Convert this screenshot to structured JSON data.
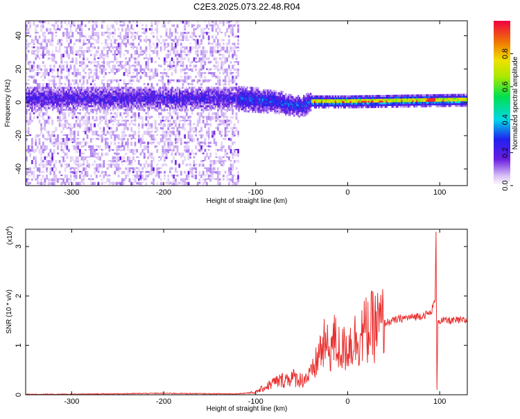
{
  "title": "C2E3.2025.073.22.48.R04",
  "colors": {
    "snr_line": "#e8302e",
    "spectrogram_low": "#c9a8f0",
    "spectrogram_band": "#3a1ad8",
    "spectrogram_peak": "#e0203a"
  },
  "chart_data": [
    {
      "type": "heatmap",
      "xlabel": "Height of straight line (km)",
      "ylabel": "Frequency (Hz)",
      "xlim": [
        -350,
        130
      ],
      "ylim": [
        -50,
        49
      ],
      "xticks": [
        -300,
        -200,
        -100,
        0,
        100
      ],
      "yticks": [
        -40,
        -20,
        0,
        20,
        40
      ],
      "colorbar": {
        "label": "Normalized spectral amplitude",
        "range": [
          0,
          1
        ],
        "ticks": [
          "0.0",
          "0.2",
          "0.4",
          "0.6",
          "0.8"
        ],
        "tick_values": [
          0.0,
          0.2,
          0.4,
          0.6,
          0.8
        ]
      },
      "band": {
        "center_hz": [
          [
            -350,
            2
          ],
          [
            -120,
            2
          ],
          [
            -80,
            0
          ],
          [
            -50,
            -3
          ],
          [
            -40,
            0
          ],
          [
            0,
            0
          ],
          [
            130,
            1
          ]
        ],
        "noise_floor_extent_km": [
          -350,
          -118
        ]
      },
      "grid": false
    },
    {
      "type": "line",
      "xlabel": "Height of straight line (km)",
      "ylabel": "SNR (10 * v/v)",
      "scale_label": "(x10",
      "scale_exponent": "4",
      "xlim": [
        -350,
        130
      ],
      "ylim": [
        0,
        3.35
      ],
      "xticks": [
        -300,
        -200,
        -100,
        0,
        100
      ],
      "yticks": [
        0,
        1,
        2,
        3
      ],
      "series": [
        {
          "x": [
            -350,
            -300,
            -250,
            -200,
            -150,
            -120,
            -100,
            -90,
            -80,
            -70,
            -60,
            -50,
            -40,
            -35,
            -30,
            -25,
            -20,
            -15,
            -10,
            -5,
            0,
            10,
            20,
            30,
            40,
            50,
            60,
            70,
            80,
            90,
            95,
            96,
            97,
            98,
            100,
            110,
            120,
            130
          ],
          "values": [
            0.01,
            0.01,
            0.02,
            0.03,
            0.02,
            0.02,
            0.05,
            0.15,
            0.25,
            0.3,
            0.35,
            0.3,
            0.4,
            0.6,
            0.9,
            1.0,
            0.9,
            1.1,
            0.95,
            0.9,
            1.0,
            1.15,
            1.3,
            1.4,
            1.45,
            1.5,
            1.55,
            1.57,
            1.6,
            1.65,
            1.9,
            3.3,
            0.1,
            1.5,
            1.5,
            1.5,
            1.5,
            1.5
          ]
        }
      ],
      "grid": false
    }
  ]
}
